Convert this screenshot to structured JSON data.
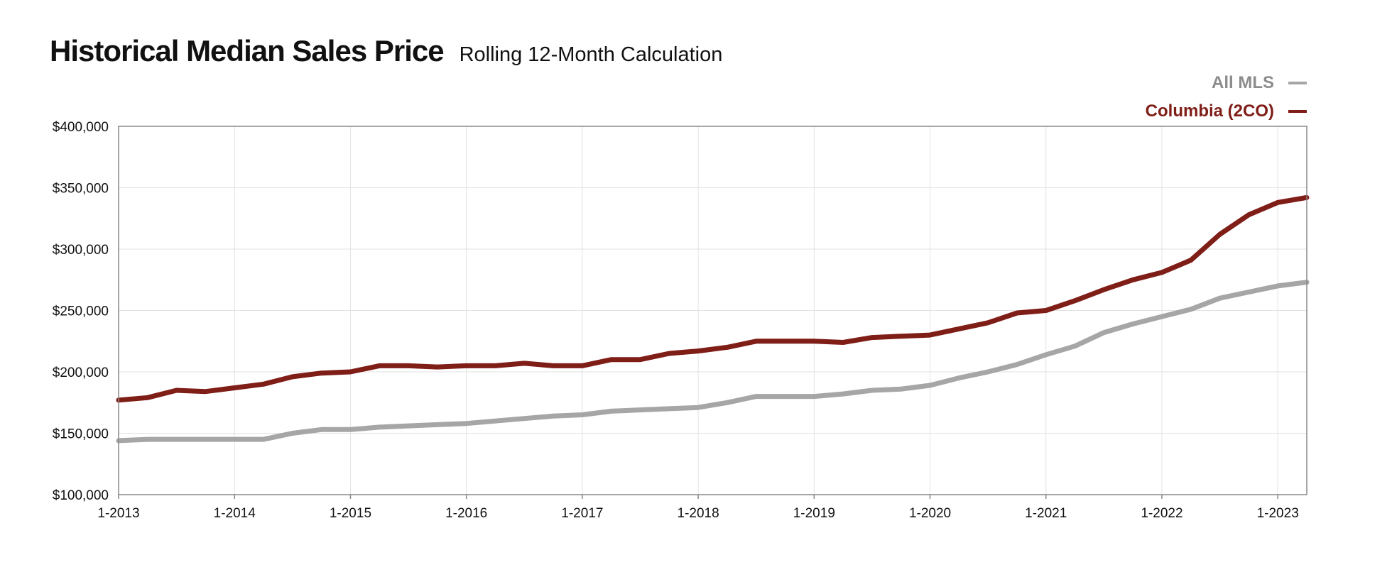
{
  "chart_data": {
    "type": "line",
    "title": "Historical Median Sales Price",
    "subtitle": "Rolling 12-Month Calculation",
    "xlabel": "",
    "ylabel": "",
    "x_tick_labels": [
      "1-2013",
      "1-2014",
      "1-2015",
      "1-2016",
      "1-2017",
      "1-2018",
      "1-2019",
      "1-2020",
      "1-2021",
      "1-2022",
      "1-2023"
    ],
    "y_tick_labels": [
      "$100,000",
      "$150,000",
      "$200,000",
      "$250,000",
      "$300,000",
      "$350,000",
      "$400,000"
    ],
    "y_ticks": [
      100000,
      150000,
      200000,
      250000,
      300000,
      350000,
      400000
    ],
    "ylim": [
      100000,
      400000
    ],
    "x_range": [
      "1-2013",
      "4-2023"
    ],
    "grid": true,
    "legend_position": "top-right",
    "series": [
      {
        "name": "All MLS",
        "color": "#a6a6a6",
        "label_color": "#8c8c8c",
        "points": [
          [
            "1-2013",
            144000
          ],
          [
            "4-2013",
            145000
          ],
          [
            "7-2013",
            145000
          ],
          [
            "10-2013",
            145000
          ],
          [
            "1-2014",
            145000
          ],
          [
            "4-2014",
            145000
          ],
          [
            "7-2014",
            150000
          ],
          [
            "10-2014",
            153000
          ],
          [
            "1-2015",
            153000
          ],
          [
            "4-2015",
            155000
          ],
          [
            "7-2015",
            156000
          ],
          [
            "10-2015",
            157000
          ],
          [
            "1-2016",
            158000
          ],
          [
            "4-2016",
            160000
          ],
          [
            "7-2016",
            162000
          ],
          [
            "10-2016",
            164000
          ],
          [
            "1-2017",
            165000
          ],
          [
            "4-2017",
            168000
          ],
          [
            "7-2017",
            169000
          ],
          [
            "10-2017",
            170000
          ],
          [
            "1-2018",
            171000
          ],
          [
            "4-2018",
            175000
          ],
          [
            "7-2018",
            180000
          ],
          [
            "10-2018",
            180000
          ],
          [
            "1-2019",
            180000
          ],
          [
            "4-2019",
            182000
          ],
          [
            "7-2019",
            185000
          ],
          [
            "10-2019",
            186000
          ],
          [
            "1-2020",
            189000
          ],
          [
            "4-2020",
            195000
          ],
          [
            "7-2020",
            200000
          ],
          [
            "10-2020",
            206000
          ],
          [
            "1-2021",
            214000
          ],
          [
            "4-2021",
            221000
          ],
          [
            "7-2021",
            232000
          ],
          [
            "10-2021",
            239000
          ],
          [
            "1-2022",
            245000
          ],
          [
            "4-2022",
            251000
          ],
          [
            "7-2022",
            260000
          ],
          [
            "10-2022",
            265000
          ],
          [
            "1-2023",
            270000
          ],
          [
            "4-2023",
            273000
          ]
        ]
      },
      {
        "name": "Columbia (2CO)",
        "color": "#7f1d17",
        "label_color": "#7f1d17",
        "points": [
          [
            "1-2013",
            177000
          ],
          [
            "4-2013",
            179000
          ],
          [
            "7-2013",
            185000
          ],
          [
            "10-2013",
            184000
          ],
          [
            "1-2014",
            187000
          ],
          [
            "4-2014",
            190000
          ],
          [
            "7-2014",
            196000
          ],
          [
            "10-2014",
            199000
          ],
          [
            "1-2015",
            200000
          ],
          [
            "4-2015",
            205000
          ],
          [
            "7-2015",
            205000
          ],
          [
            "10-2015",
            204000
          ],
          [
            "1-2016",
            205000
          ],
          [
            "4-2016",
            205000
          ],
          [
            "7-2016",
            207000
          ],
          [
            "10-2016",
            205000
          ],
          [
            "1-2017",
            205000
          ],
          [
            "4-2017",
            210000
          ],
          [
            "7-2017",
            210000
          ],
          [
            "10-2017",
            215000
          ],
          [
            "1-2018",
            217000
          ],
          [
            "4-2018",
            220000
          ],
          [
            "7-2018",
            225000
          ],
          [
            "10-2018",
            225000
          ],
          [
            "1-2019",
            225000
          ],
          [
            "4-2019",
            224000
          ],
          [
            "7-2019",
            228000
          ],
          [
            "10-2019",
            229000
          ],
          [
            "1-2020",
            230000
          ],
          [
            "4-2020",
            235000
          ],
          [
            "7-2020",
            240000
          ],
          [
            "10-2020",
            248000
          ],
          [
            "1-2021",
            250000
          ],
          [
            "4-2021",
            258000
          ],
          [
            "7-2021",
            267000
          ],
          [
            "10-2021",
            275000
          ],
          [
            "1-2022",
            281000
          ],
          [
            "4-2022",
            291000
          ],
          [
            "7-2022",
            312000
          ],
          [
            "10-2022",
            328000
          ],
          [
            "1-2023",
            338000
          ],
          [
            "4-2023",
            342000
          ]
        ]
      }
    ]
  }
}
